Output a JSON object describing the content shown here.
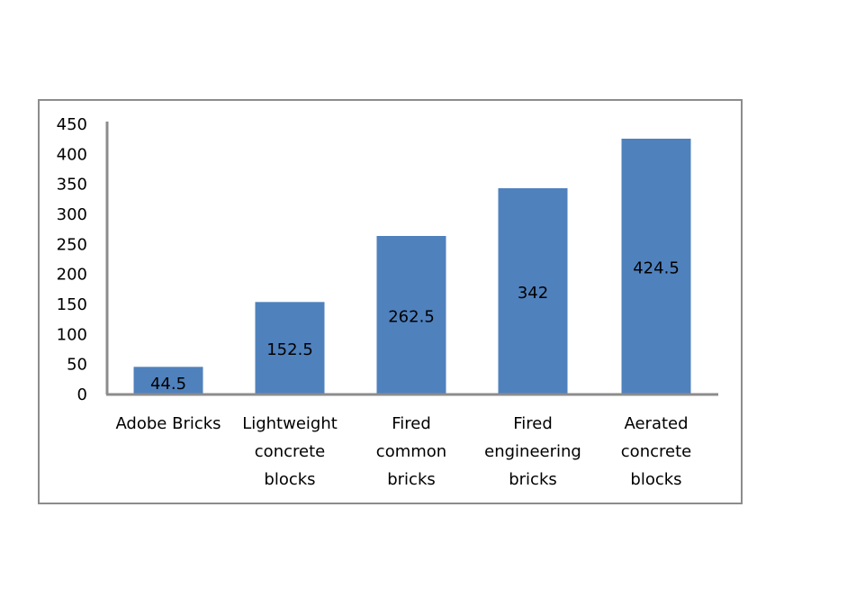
{
  "chart_data": {
    "type": "bar",
    "title": "",
    "xlabel": "",
    "ylabel": "",
    "categories": [
      [
        "Adobe Bricks"
      ],
      [
        "Lightweight",
        "concrete",
        "blocks"
      ],
      [
        "Fired",
        "common",
        "bricks"
      ],
      [
        "Fired",
        "engineering",
        "bricks"
      ],
      [
        "Aerated",
        "concrete",
        "blocks"
      ]
    ],
    "values": [
      44.5,
      152.5,
      262.5,
      342,
      424.5
    ],
    "data_labels": [
      "44.5",
      "152.5",
      "262.5",
      "342",
      "424.5"
    ],
    "ylim": [
      0,
      450
    ],
    "yticks": [
      0,
      50,
      100,
      150,
      200,
      250,
      300,
      350,
      400,
      450
    ],
    "grid": false,
    "legend": "none",
    "colors": {
      "bar": "#4f81bd",
      "axis": "#8c8c8c"
    }
  }
}
